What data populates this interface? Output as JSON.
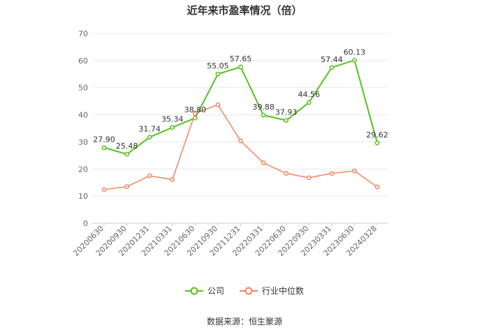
{
  "chart_data": {
    "type": "line",
    "title": "近年来市盈率情况（倍）",
    "categories": [
      "20200630",
      "20200930",
      "20201231",
      "20210331",
      "20210630",
      "20210930",
      "20211231",
      "20220331",
      "20220630",
      "20220930",
      "20230331",
      "20230630",
      "20240328"
    ],
    "series": [
      {
        "name": "公司",
        "color": "#52c41a",
        "values": [
          27.9,
          25.48,
          31.74,
          35.34,
          38.8,
          55.05,
          57.65,
          39.88,
          37.93,
          44.56,
          57.44,
          60.13,
          29.62
        ],
        "labels": [
          "27.90",
          "25.48",
          "31.74",
          "35.34",
          "38.80",
          "55.05",
          "57.65",
          "39.88",
          "37.93",
          "44.56",
          "57.44",
          "60.13",
          "29.62"
        ]
      },
      {
        "name": "行业中位数",
        "color": "#f4845f",
        "values": [
          12.4,
          13.5,
          17.5,
          16.1,
          40.6,
          43.7,
          30.4,
          22.3,
          18.4,
          16.8,
          18.4,
          19.3,
          13.4
        ]
      }
    ],
    "ylim": [
      0,
      70
    ],
    "yticks": [
      0,
      10,
      20,
      30,
      40,
      50,
      60,
      70
    ],
    "grid": true,
    "legend_position": "bottom"
  },
  "footer": {
    "source": "数据来源：恒生聚源"
  }
}
